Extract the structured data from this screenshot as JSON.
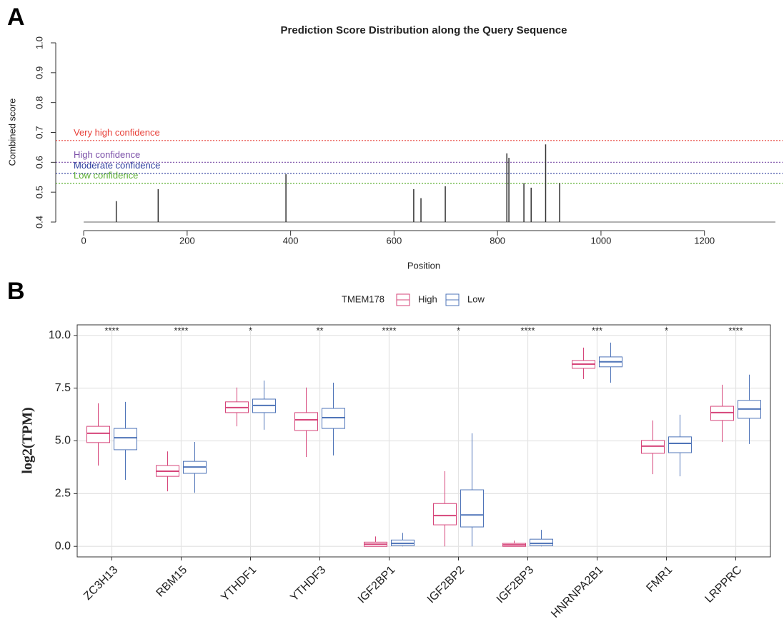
{
  "chart_data": [
    {
      "type": "spike",
      "panel": "A",
      "title": "Prediction Score Distribution along the Query Sequence",
      "xlabel": "Position",
      "ylabel": "Combined score",
      "x": [
        63,
        144,
        391,
        638,
        652,
        699,
        818,
        822,
        851,
        865,
        893,
        920
      ],
      "values": [
        0.47,
        0.51,
        0.56,
        0.51,
        0.48,
        0.52,
        0.63,
        0.615,
        0.53,
        0.515,
        0.66,
        0.53
      ],
      "color": "#333333",
      "thresholds": [
        {
          "label": "Very high confidence",
          "value": 0.673,
          "color": "#e8423b"
        },
        {
          "label": "High confidence",
          "value": 0.6,
          "color": "#7b4fa8"
        },
        {
          "label": "Moderate confidence",
          "value": 0.563,
          "color": "#2e3e9e"
        },
        {
          "label": "Low confidence",
          "value": 0.53,
          "color": "#5cb030"
        }
      ],
      "xlim": [
        -54,
        1351
      ],
      "xticks": [
        0,
        200,
        400,
        600,
        800,
        1000,
        1200
      ],
      "ylim": [
        0.4,
        1.0
      ],
      "yticks": [
        0.4,
        0.5,
        0.6,
        0.7,
        0.8,
        0.9,
        {
          "value": 1,
          "label": "1.0"
        }
      ]
    },
    {
      "type": "boxplot",
      "panel": "B",
      "ylabel": "log2(TPM)",
      "legend_title": "TMEM178",
      "categories": [
        "ZC3H13",
        "RBM15",
        "YTHDF1",
        "YTHDF3",
        "IGF2BP1",
        "IGF2BP2",
        "IGF2BP3",
        "HNRNPA2B1",
        "FMR1",
        "LRPPRC"
      ],
      "significance": [
        "****",
        "****",
        "*",
        "**",
        "****",
        "*",
        "****",
        "***",
        "*",
        "****"
      ],
      "series": [
        {
          "name": "High",
          "color": "#d6457a",
          "values": [
            [
              3.83,
              4.92,
              5.36,
              5.69,
              6.78
            ],
            [
              2.61,
              3.32,
              3.56,
              3.83,
              4.5
            ],
            [
              5.69,
              6.34,
              6.58,
              6.85,
              7.53
            ],
            [
              4.24,
              5.49,
              6.0,
              6.34,
              7.53
            ],
            [
              0,
              0,
              0.1,
              0.2,
              0.47
            ],
            [
              0,
              1.02,
              1.46,
              2.03,
              3.56
            ],
            [
              0,
              0,
              0.07,
              0.14,
              0.27
            ],
            [
              7.93,
              8.44,
              8.64,
              8.81,
              9.42
            ],
            [
              3.42,
              4.41,
              4.75,
              5.02,
              5.97
            ],
            [
              4.95,
              5.97,
              6.34,
              6.64,
              7.66
            ]
          ]
        },
        {
          "name": "Low",
          "color": "#4f74b8",
          "values": [
            [
              3.15,
              4.58,
              5.15,
              5.59,
              6.85
            ],
            [
              2.54,
              3.46,
              3.76,
              4.03,
              4.95
            ],
            [
              5.53,
              6.34,
              6.68,
              6.98,
              7.86
            ],
            [
              4.31,
              5.59,
              6.1,
              6.54,
              7.76
            ],
            [
              0,
              0.03,
              0.14,
              0.3,
              0.64
            ],
            [
              0,
              0.92,
              1.49,
              2.68,
              5.36
            ],
            [
              0,
              0.03,
              0.14,
              0.34,
              0.78
            ],
            [
              7.76,
              8.51,
              8.75,
              8.98,
              9.66
            ],
            [
              3.32,
              4.44,
              4.88,
              5.19,
              6.24
            ],
            [
              4.85,
              6.07,
              6.51,
              6.92,
              8.14
            ]
          ]
        }
      ],
      "ylim": [
        -0.5,
        10.5
      ],
      "yticks": [
        {
          "value": 0,
          "label": "0.0"
        },
        2.5,
        {
          "value": 5,
          "label": "5.0"
        },
        7.5,
        {
          "value": 10,
          "label": "10.0"
        }
      ],
      "grid": true
    }
  ]
}
